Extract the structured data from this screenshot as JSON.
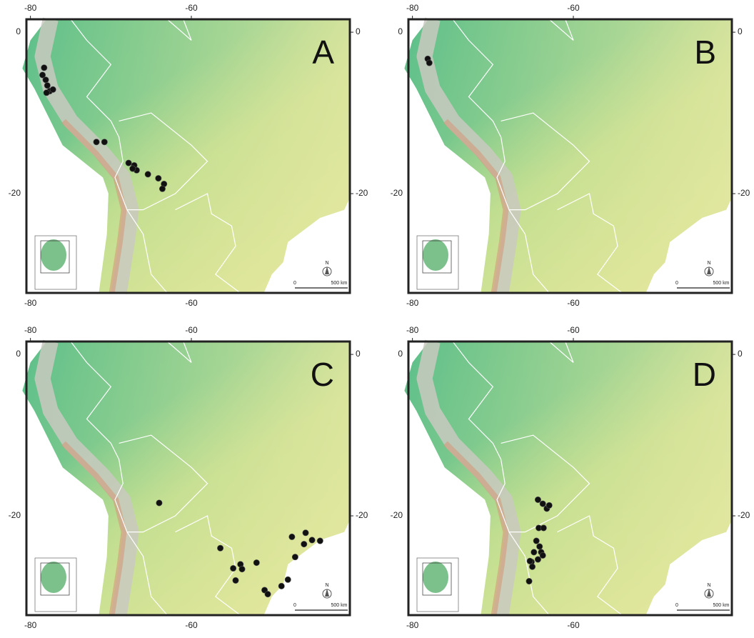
{
  "map": {
    "xlim": [
      -80.5,
      -40.3
    ],
    "ylim": [
      -32.3,
      1.6
    ],
    "xticks": [
      -80,
      -60
    ],
    "yticks": [
      0,
      -20
    ]
  },
  "panels": [
    {
      "label": "A",
      "points": [
        [
          -78.3,
          -4.4
        ],
        [
          -78.5,
          -5.3
        ],
        [
          -78.1,
          -5.9
        ],
        [
          -77.9,
          -6.6
        ],
        [
          -77.6,
          -7.3
        ],
        [
          -77.2,
          -7.1
        ],
        [
          -78,
          -7.5
        ],
        [
          -71.8,
          -13.6
        ],
        [
          -70.8,
          -13.6
        ],
        [
          -67.8,
          -16.2
        ],
        [
          -67.1,
          -16.5
        ],
        [
          -66.8,
          -17.1
        ],
        [
          -65.4,
          -17.6
        ],
        [
          -64.1,
          -18.1
        ],
        [
          -63.4,
          -18.8
        ],
        [
          -63.6,
          -19.4
        ],
        [
          -67.3,
          -16.9
        ]
      ]
    },
    {
      "label": "B",
      "points": [
        [
          -78.1,
          -3.3
        ],
        [
          -77.9,
          -3.8
        ]
      ]
    },
    {
      "label": "C",
      "points": [
        [
          -64,
          -18.4
        ],
        [
          -56.4,
          -24
        ],
        [
          -54.8,
          -26.5
        ],
        [
          -53.9,
          -26
        ],
        [
          -53.7,
          -26.6
        ],
        [
          -54.5,
          -28
        ],
        [
          -51.9,
          -25.8
        ],
        [
          -50.9,
          -29.2
        ],
        [
          -50.5,
          -29.7
        ],
        [
          -48.8,
          -28.7
        ],
        [
          -48,
          -27.9
        ],
        [
          -47.1,
          -25.1
        ],
        [
          -47.5,
          -22.6
        ],
        [
          -45.8,
          -22.1
        ],
        [
          -45,
          -23
        ],
        [
          -44,
          -23.1
        ],
        [
          -46,
          -23.5
        ]
      ]
    },
    {
      "label": "D",
      "points": [
        [
          -64.4,
          -18
        ],
        [
          -63.8,
          -18.5
        ],
        [
          -63.3,
          -19.1
        ],
        [
          -63,
          -18.7
        ],
        [
          -64.3,
          -21.5
        ],
        [
          -63.7,
          -21.5
        ],
        [
          -64.6,
          -23.1
        ],
        [
          -64.2,
          -23.8
        ],
        [
          -64.9,
          -24.5
        ],
        [
          -64,
          -24.5
        ],
        [
          -65.2,
          -25.7
        ],
        [
          -64.4,
          -25.4
        ],
        [
          -65.1,
          -26.3
        ],
        [
          -65.4,
          -25.6
        ],
        [
          -65.5,
          -28.1
        ],
        [
          -63.8,
          -24.9
        ]
      ]
    }
  ],
  "scale_bar": {
    "start": "0",
    "end": "500 km"
  },
  "north_label": "N"
}
